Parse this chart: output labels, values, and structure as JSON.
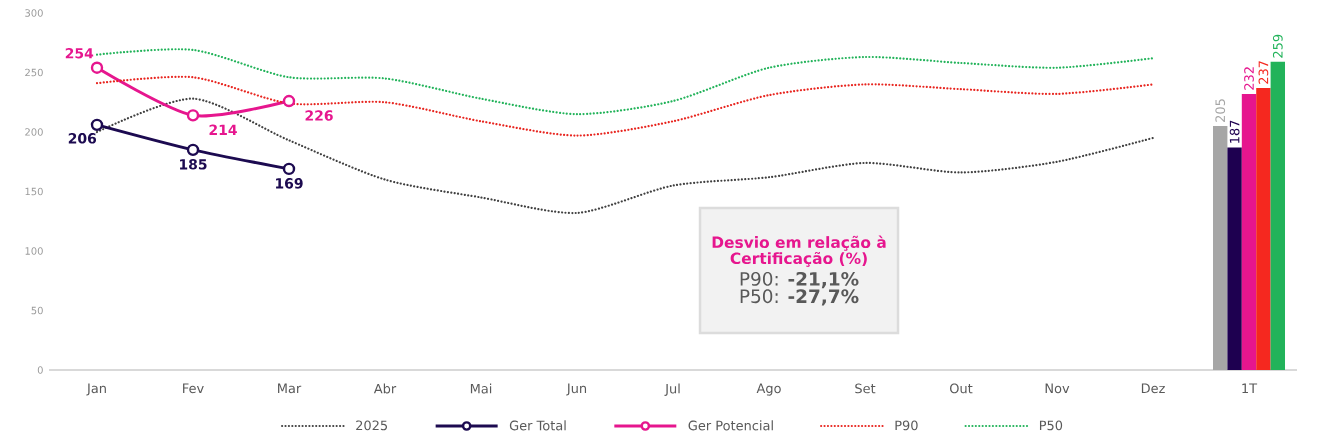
{
  "chart_data": {
    "type": "line",
    "categories": [
      "Jan",
      "Fev",
      "Mar",
      "Abr",
      "Mai",
      "Jun",
      "Jul",
      "Ago",
      "Set",
      "Out",
      "Nov",
      "Dez",
      "1T"
    ],
    "ylim": [
      0,
      300
    ],
    "yticks": [
      0,
      50,
      100,
      150,
      200,
      250,
      300
    ],
    "legend": "bottom",
    "annotations": [
      "Desvio em relação à Certificação (%)",
      "P90: **-21,1%**",
      "P50: **-27,7%**"
    ],
    "series": [
      {
        "name": "2025",
        "color": "#404040",
        "line_style": "dotted",
        "values": [
          200,
          228,
          193,
          160,
          145,
          132,
          155,
          162,
          174,
          166,
          175,
          195,
          null
        ]
      },
      {
        "name": "Ger Total",
        "color": "#1c0a50",
        "line_style": "solid",
        "marker": "circle",
        "values": [
          206,
          185,
          169,
          null,
          null,
          null,
          null,
          null,
          null,
          null,
          null,
          null,
          null
        ],
        "value_labels": [
          "206",
          "185",
          "169",
          null,
          null,
          null,
          null,
          null,
          null,
          null,
          null,
          null,
          null
        ]
      },
      {
        "name": "Ger Potencial",
        "color": "#e6168e",
        "line_style": "solid",
        "marker": "circle",
        "values": [
          254,
          214,
          226,
          null,
          null,
          null,
          null,
          null,
          null,
          null,
          null,
          null,
          null
        ],
        "value_labels": [
          "254",
          "214",
          "226",
          null,
          null,
          null,
          null,
          null,
          null,
          null,
          null,
          null,
          null
        ]
      },
      {
        "name": "P90",
        "color": "#e8251f",
        "line_style": "dotted",
        "values": [
          241,
          246,
          224,
          225,
          209,
          197,
          209,
          231,
          240,
          236,
          232,
          240,
          null
        ]
      },
      {
        "name": "P50",
        "color": "#22b35a",
        "line_style": "dotted",
        "values": [
          265,
          269,
          246,
          245,
          228,
          215,
          226,
          254,
          263,
          258,
          254,
          262,
          null
        ]
      },
      {
        "type": "bar",
        "color": "#a6a6a6",
        "values": [
          null,
          null,
          null,
          null,
          null,
          null,
          null,
          null,
          null,
          null,
          null,
          null,
          205
        ],
        "value_labels": [
          null,
          null,
          null,
          null,
          null,
          null,
          null,
          null,
          null,
          null,
          null,
          null,
          "205"
        ]
      },
      {
        "type": "bar",
        "color": "#1e0050",
        "values": [
          null,
          null,
          null,
          null,
          null,
          null,
          null,
          null,
          null,
          null,
          null,
          null,
          187
        ],
        "value_labels": [
          null,
          null,
          null,
          null,
          null,
          null,
          null,
          null,
          null,
          null,
          null,
          null,
          "187"
        ]
      },
      {
        "type": "bar",
        "color": "#e6168e",
        "values": [
          null,
          null,
          null,
          null,
          null,
          null,
          null,
          null,
          null,
          null,
          null,
          null,
          232
        ],
        "value_labels": [
          null,
          null,
          null,
          null,
          null,
          null,
          null,
          null,
          null,
          null,
          null,
          null,
          "232"
        ]
      },
      {
        "type": "bar",
        "color": "#f5281f",
        "values": [
          null,
          null,
          null,
          null,
          null,
          null,
          null,
          null,
          null,
          null,
          null,
          null,
          237
        ],
        "value_labels": [
          null,
          null,
          null,
          null,
          null,
          null,
          null,
          null,
          null,
          null,
          null,
          null,
          "237"
        ]
      },
      {
        "type": "bar",
        "color": "#22b35a",
        "values": [
          null,
          null,
          null,
          null,
          null,
          null,
          null,
          null,
          null,
          null,
          null,
          null,
          259
        ],
        "value_labels": [
          null,
          null,
          null,
          null,
          null,
          null,
          null,
          null,
          null,
          null,
          null,
          null,
          "259"
        ]
      }
    ]
  }
}
